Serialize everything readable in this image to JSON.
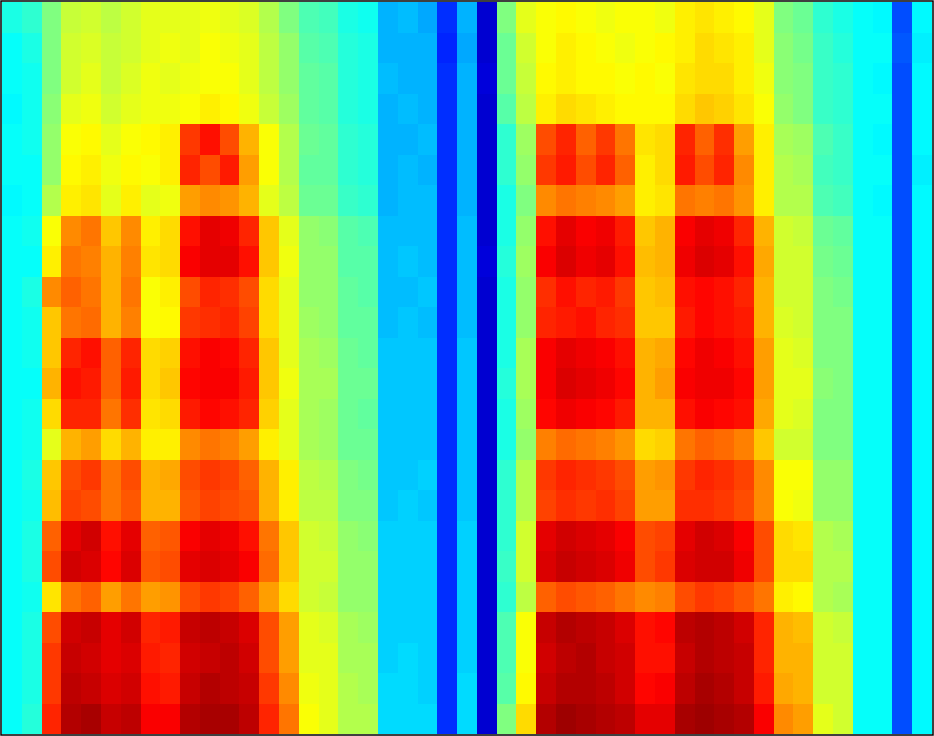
{
  "chart_data": {
    "type": "heatmap",
    "tick_labels": false,
    "color_range": [
      0,
      1
    ],
    "cells": [
      [
        0.4,
        0.42,
        0.5,
        0.57,
        0.58,
        0.56,
        0.58,
        0.6,
        0.6,
        0.6,
        0.61,
        0.6,
        0.59,
        0.55,
        0.5,
        0.45,
        0.44,
        0.4,
        0.39,
        0.3,
        0.31,
        0.29,
        0.17,
        0.3,
        0.08,
        0.5,
        0.6,
        0.62,
        0.63,
        0.62,
        0.61,
        0.62,
        0.62,
        0.61,
        0.64,
        0.65,
        0.64,
        0.63,
        0.6,
        0.5,
        0.48,
        0.42,
        0.4,
        0.38,
        0.37,
        0.2,
        0.37
      ],
      [
        0.38,
        0.4,
        0.5,
        0.58,
        0.59,
        0.57,
        0.58,
        0.6,
        0.61,
        0.6,
        0.62,
        0.61,
        0.6,
        0.56,
        0.52,
        0.46,
        0.45,
        0.41,
        0.4,
        0.3,
        0.3,
        0.3,
        0.16,
        0.29,
        0.08,
        0.48,
        0.58,
        0.62,
        0.64,
        0.63,
        0.62,
        0.61,
        0.62,
        0.63,
        0.64,
        0.66,
        0.65,
        0.64,
        0.6,
        0.51,
        0.49,
        0.43,
        0.41,
        0.38,
        0.38,
        0.21,
        0.36
      ],
      [
        0.38,
        0.39,
        0.5,
        0.58,
        0.6,
        0.57,
        0.59,
        0.61,
        0.6,
        0.61,
        0.62,
        0.62,
        0.6,
        0.56,
        0.52,
        0.47,
        0.46,
        0.41,
        0.4,
        0.31,
        0.3,
        0.3,
        0.17,
        0.3,
        0.09,
        0.48,
        0.57,
        0.63,
        0.64,
        0.63,
        0.63,
        0.62,
        0.63,
        0.62,
        0.65,
        0.66,
        0.66,
        0.64,
        0.61,
        0.51,
        0.5,
        0.43,
        0.42,
        0.38,
        0.37,
        0.2,
        0.37
      ],
      [
        0.37,
        0.39,
        0.51,
        0.6,
        0.61,
        0.58,
        0.6,
        0.61,
        0.61,
        0.62,
        0.64,
        0.63,
        0.61,
        0.57,
        0.53,
        0.47,
        0.46,
        0.41,
        0.4,
        0.3,
        0.31,
        0.3,
        0.17,
        0.3,
        0.08,
        0.46,
        0.56,
        0.64,
        0.66,
        0.65,
        0.64,
        0.63,
        0.63,
        0.63,
        0.66,
        0.68,
        0.67,
        0.65,
        0.62,
        0.52,
        0.5,
        0.43,
        0.42,
        0.38,
        0.38,
        0.2,
        0.37
      ],
      [
        0.38,
        0.39,
        0.52,
        0.62,
        0.63,
        0.6,
        0.62,
        0.63,
        0.64,
        0.82,
        0.86,
        0.8,
        0.7,
        0.62,
        0.55,
        0.48,
        0.47,
        0.42,
        0.41,
        0.3,
        0.3,
        0.31,
        0.17,
        0.3,
        0.08,
        0.42,
        0.53,
        0.8,
        0.84,
        0.78,
        0.82,
        0.76,
        0.65,
        0.66,
        0.84,
        0.78,
        0.83,
        0.72,
        0.64,
        0.54,
        0.53,
        0.45,
        0.43,
        0.38,
        0.37,
        0.2,
        0.37
      ],
      [
        0.38,
        0.38,
        0.52,
        0.63,
        0.64,
        0.61,
        0.63,
        0.62,
        0.64,
        0.84,
        0.8,
        0.85,
        0.72,
        0.62,
        0.55,
        0.47,
        0.47,
        0.42,
        0.41,
        0.3,
        0.31,
        0.3,
        0.17,
        0.3,
        0.08,
        0.42,
        0.52,
        0.82,
        0.85,
        0.8,
        0.84,
        0.78,
        0.64,
        0.66,
        0.85,
        0.8,
        0.84,
        0.74,
        0.64,
        0.55,
        0.54,
        0.44,
        0.43,
        0.38,
        0.38,
        0.2,
        0.36
      ],
      [
        0.37,
        0.38,
        0.55,
        0.64,
        0.65,
        0.6,
        0.64,
        0.6,
        0.61,
        0.72,
        0.74,
        0.73,
        0.7,
        0.6,
        0.56,
        0.48,
        0.48,
        0.43,
        0.42,
        0.3,
        0.31,
        0.31,
        0.17,
        0.3,
        0.08,
        0.4,
        0.5,
        0.74,
        0.76,
        0.75,
        0.74,
        0.72,
        0.64,
        0.65,
        0.76,
        0.75,
        0.76,
        0.73,
        0.64,
        0.55,
        0.55,
        0.45,
        0.44,
        0.38,
        0.37,
        0.2,
        0.37
      ],
      [
        0.38,
        0.39,
        0.62,
        0.74,
        0.76,
        0.68,
        0.74,
        0.64,
        0.66,
        0.86,
        0.9,
        0.89,
        0.84,
        0.68,
        0.6,
        0.52,
        0.51,
        0.46,
        0.45,
        0.31,
        0.31,
        0.31,
        0.17,
        0.31,
        0.08,
        0.4,
        0.52,
        0.86,
        0.9,
        0.88,
        0.89,
        0.85,
        0.68,
        0.7,
        0.88,
        0.9,
        0.89,
        0.84,
        0.7,
        0.58,
        0.57,
        0.48,
        0.47,
        0.38,
        0.38,
        0.2,
        0.37
      ],
      [
        0.38,
        0.38,
        0.64,
        0.76,
        0.75,
        0.7,
        0.75,
        0.65,
        0.66,
        0.88,
        0.9,
        0.9,
        0.86,
        0.68,
        0.61,
        0.52,
        0.52,
        0.46,
        0.46,
        0.31,
        0.32,
        0.31,
        0.17,
        0.31,
        0.09,
        0.41,
        0.53,
        0.88,
        0.91,
        0.89,
        0.9,
        0.86,
        0.69,
        0.7,
        0.89,
        0.91,
        0.9,
        0.86,
        0.71,
        0.58,
        0.58,
        0.49,
        0.48,
        0.38,
        0.38,
        0.2,
        0.37
      ],
      [
        0.38,
        0.4,
        0.74,
        0.78,
        0.76,
        0.7,
        0.76,
        0.62,
        0.64,
        0.8,
        0.84,
        0.83,
        0.8,
        0.66,
        0.6,
        0.52,
        0.52,
        0.47,
        0.46,
        0.31,
        0.31,
        0.32,
        0.17,
        0.31,
        0.08,
        0.4,
        0.52,
        0.83,
        0.86,
        0.84,
        0.85,
        0.82,
        0.68,
        0.69,
        0.86,
        0.87,
        0.86,
        0.84,
        0.7,
        0.58,
        0.58,
        0.5,
        0.49,
        0.38,
        0.38,
        0.2,
        0.37
      ],
      [
        0.38,
        0.39,
        0.68,
        0.76,
        0.77,
        0.7,
        0.75,
        0.62,
        0.63,
        0.82,
        0.83,
        0.84,
        0.81,
        0.66,
        0.6,
        0.53,
        0.52,
        0.47,
        0.47,
        0.31,
        0.32,
        0.31,
        0.17,
        0.31,
        0.08,
        0.4,
        0.52,
        0.84,
        0.85,
        0.86,
        0.84,
        0.83,
        0.68,
        0.68,
        0.85,
        0.87,
        0.86,
        0.85,
        0.7,
        0.59,
        0.58,
        0.5,
        0.5,
        0.38,
        0.38,
        0.2,
        0.37
      ],
      [
        0.38,
        0.39,
        0.68,
        0.84,
        0.86,
        0.78,
        0.84,
        0.66,
        0.67,
        0.86,
        0.88,
        0.87,
        0.84,
        0.68,
        0.6,
        0.54,
        0.53,
        0.48,
        0.47,
        0.32,
        0.32,
        0.32,
        0.17,
        0.32,
        0.08,
        0.4,
        0.54,
        0.88,
        0.9,
        0.89,
        0.88,
        0.86,
        0.7,
        0.71,
        0.87,
        0.89,
        0.88,
        0.86,
        0.72,
        0.6,
        0.59,
        0.5,
        0.5,
        0.38,
        0.38,
        0.2,
        0.37
      ],
      [
        0.38,
        0.38,
        0.7,
        0.86,
        0.85,
        0.78,
        0.85,
        0.66,
        0.68,
        0.87,
        0.88,
        0.88,
        0.85,
        0.68,
        0.61,
        0.54,
        0.54,
        0.48,
        0.48,
        0.32,
        0.32,
        0.32,
        0.17,
        0.32,
        0.08,
        0.41,
        0.54,
        0.88,
        0.91,
        0.9,
        0.89,
        0.87,
        0.7,
        0.72,
        0.88,
        0.89,
        0.89,
        0.87,
        0.72,
        0.6,
        0.6,
        0.51,
        0.5,
        0.38,
        0.38,
        0.2,
        0.37
      ],
      [
        0.38,
        0.39,
        0.66,
        0.84,
        0.84,
        0.76,
        0.83,
        0.65,
        0.66,
        0.85,
        0.87,
        0.86,
        0.84,
        0.67,
        0.6,
        0.54,
        0.53,
        0.48,
        0.47,
        0.32,
        0.32,
        0.32,
        0.17,
        0.32,
        0.08,
        0.4,
        0.53,
        0.87,
        0.89,
        0.88,
        0.87,
        0.85,
        0.7,
        0.7,
        0.86,
        0.88,
        0.87,
        0.86,
        0.71,
        0.6,
        0.59,
        0.5,
        0.5,
        0.38,
        0.38,
        0.2,
        0.37
      ],
      [
        0.38,
        0.39,
        0.6,
        0.7,
        0.72,
        0.66,
        0.7,
        0.64,
        0.64,
        0.74,
        0.76,
        0.75,
        0.72,
        0.64,
        0.6,
        0.54,
        0.53,
        0.48,
        0.48,
        0.32,
        0.32,
        0.32,
        0.17,
        0.32,
        0.08,
        0.4,
        0.52,
        0.75,
        0.77,
        0.76,
        0.75,
        0.73,
        0.66,
        0.67,
        0.76,
        0.78,
        0.77,
        0.75,
        0.68,
        0.58,
        0.58,
        0.5,
        0.5,
        0.38,
        0.38,
        0.2,
        0.37
      ],
      [
        0.38,
        0.4,
        0.68,
        0.8,
        0.82,
        0.76,
        0.8,
        0.7,
        0.71,
        0.8,
        0.82,
        0.81,
        0.78,
        0.7,
        0.64,
        0.56,
        0.55,
        0.5,
        0.49,
        0.32,
        0.32,
        0.33,
        0.17,
        0.32,
        0.08,
        0.42,
        0.55,
        0.82,
        0.84,
        0.83,
        0.82,
        0.8,
        0.72,
        0.73,
        0.82,
        0.84,
        0.83,
        0.81,
        0.74,
        0.62,
        0.62,
        0.52,
        0.52,
        0.38,
        0.38,
        0.2,
        0.37
      ],
      [
        0.38,
        0.39,
        0.69,
        0.81,
        0.8,
        0.76,
        0.79,
        0.7,
        0.7,
        0.79,
        0.81,
        0.8,
        0.79,
        0.7,
        0.64,
        0.56,
        0.56,
        0.5,
        0.5,
        0.32,
        0.33,
        0.32,
        0.17,
        0.32,
        0.08,
        0.42,
        0.55,
        0.81,
        0.83,
        0.82,
        0.83,
        0.81,
        0.72,
        0.72,
        0.83,
        0.83,
        0.82,
        0.8,
        0.74,
        0.62,
        0.61,
        0.52,
        0.52,
        0.38,
        0.38,
        0.2,
        0.37
      ],
      [
        0.38,
        0.4,
        0.78,
        0.9,
        0.92,
        0.86,
        0.9,
        0.78,
        0.79,
        0.88,
        0.9,
        0.89,
        0.86,
        0.76,
        0.68,
        0.58,
        0.57,
        0.52,
        0.51,
        0.33,
        0.33,
        0.33,
        0.17,
        0.33,
        0.08,
        0.42,
        0.58,
        0.9,
        0.92,
        0.91,
        0.9,
        0.88,
        0.8,
        0.81,
        0.9,
        0.92,
        0.91,
        0.88,
        0.8,
        0.66,
        0.65,
        0.55,
        0.54,
        0.38,
        0.38,
        0.2,
        0.37
      ],
      [
        0.38,
        0.4,
        0.8,
        0.92,
        0.91,
        0.87,
        0.91,
        0.79,
        0.8,
        0.9,
        0.91,
        0.9,
        0.88,
        0.77,
        0.68,
        0.58,
        0.58,
        0.52,
        0.52,
        0.33,
        0.33,
        0.33,
        0.17,
        0.33,
        0.08,
        0.43,
        0.58,
        0.91,
        0.93,
        0.92,
        0.91,
        0.89,
        0.8,
        0.82,
        0.91,
        0.92,
        0.92,
        0.89,
        0.8,
        0.66,
        0.66,
        0.55,
        0.55,
        0.38,
        0.38,
        0.2,
        0.37
      ],
      [
        0.38,
        0.39,
        0.65,
        0.76,
        0.78,
        0.72,
        0.76,
        0.72,
        0.73,
        0.8,
        0.82,
        0.81,
        0.78,
        0.72,
        0.66,
        0.58,
        0.57,
        0.52,
        0.52,
        0.33,
        0.33,
        0.33,
        0.17,
        0.33,
        0.08,
        0.42,
        0.56,
        0.78,
        0.8,
        0.79,
        0.78,
        0.76,
        0.74,
        0.75,
        0.8,
        0.82,
        0.81,
        0.79,
        0.76,
        0.64,
        0.63,
        0.55,
        0.54,
        0.38,
        0.38,
        0.2,
        0.37
      ],
      [
        0.38,
        0.4,
        0.8,
        0.92,
        0.93,
        0.9,
        0.92,
        0.84,
        0.85,
        0.93,
        0.94,
        0.93,
        0.91,
        0.8,
        0.72,
        0.6,
        0.59,
        0.54,
        0.53,
        0.33,
        0.33,
        0.33,
        0.17,
        0.33,
        0.08,
        0.45,
        0.62,
        0.93,
        0.95,
        0.94,
        0.93,
        0.91,
        0.86,
        0.87,
        0.94,
        0.95,
        0.94,
        0.92,
        0.84,
        0.7,
        0.69,
        0.58,
        0.57,
        0.38,
        0.38,
        0.2,
        0.37
      ],
      [
        0.38,
        0.4,
        0.82,
        0.93,
        0.92,
        0.9,
        0.91,
        0.85,
        0.84,
        0.92,
        0.93,
        0.94,
        0.92,
        0.8,
        0.72,
        0.6,
        0.6,
        0.54,
        0.54,
        0.33,
        0.34,
        0.33,
        0.17,
        0.33,
        0.08,
        0.45,
        0.62,
        0.92,
        0.94,
        0.95,
        0.93,
        0.92,
        0.86,
        0.86,
        0.93,
        0.95,
        0.94,
        0.93,
        0.84,
        0.7,
        0.7,
        0.58,
        0.58,
        0.38,
        0.38,
        0.2,
        0.37
      ],
      [
        0.38,
        0.4,
        0.82,
        0.94,
        0.93,
        0.91,
        0.92,
        0.86,
        0.85,
        0.93,
        0.95,
        0.94,
        0.93,
        0.82,
        0.74,
        0.61,
        0.6,
        0.55,
        0.54,
        0.34,
        0.34,
        0.33,
        0.17,
        0.34,
        0.08,
        0.46,
        0.63,
        0.93,
        0.95,
        0.95,
        0.94,
        0.92,
        0.87,
        0.88,
        0.94,
        0.96,
        0.95,
        0.93,
        0.85,
        0.71,
        0.7,
        0.58,
        0.58,
        0.38,
        0.38,
        0.2,
        0.37
      ],
      [
        0.38,
        0.41,
        0.84,
        0.95,
        0.96,
        0.93,
        0.94,
        0.88,
        0.88,
        0.95,
        0.96,
        0.96,
        0.94,
        0.84,
        0.76,
        0.62,
        0.6,
        0.55,
        0.55,
        0.34,
        0.34,
        0.34,
        0.17,
        0.34,
        0.08,
        0.5,
        0.66,
        0.95,
        0.97,
        0.96,
        0.95,
        0.94,
        0.9,
        0.9,
        0.96,
        0.97,
        0.96,
        0.95,
        0.88,
        0.74,
        0.72,
        0.6,
        0.58,
        0.38,
        0.38,
        0.2,
        0.37
      ]
    ]
  }
}
